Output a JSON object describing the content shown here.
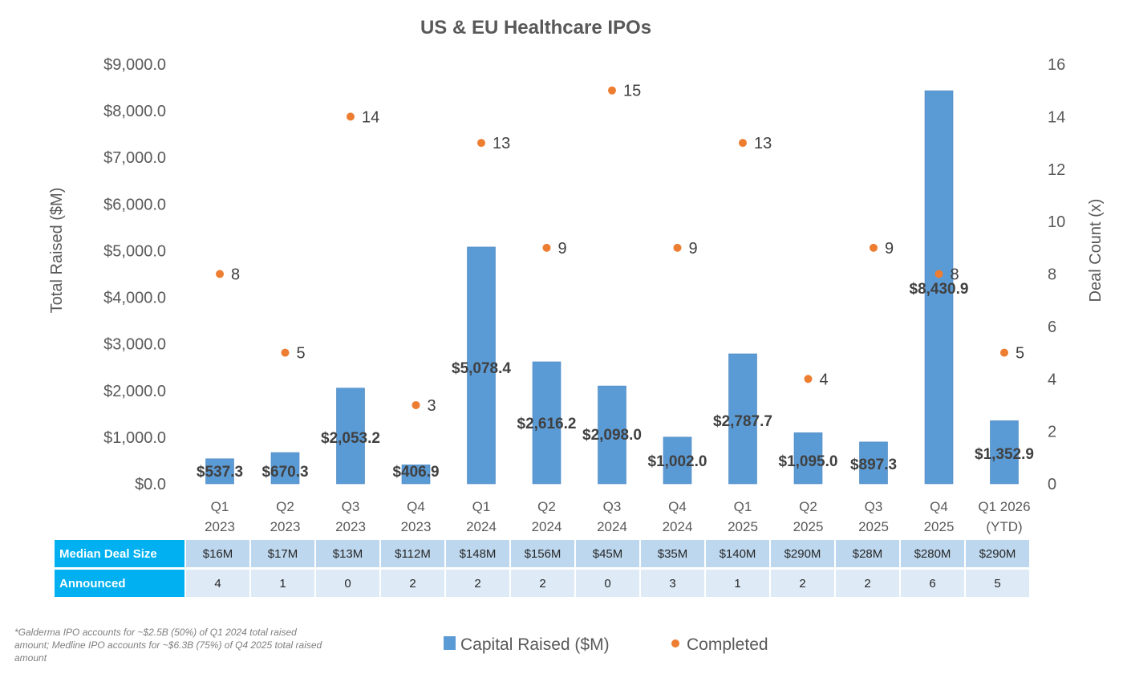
{
  "chart_data": {
    "type": "bar",
    "title": "US & EU Healthcare IPOs",
    "ylabel": "Total Raised ($M)",
    "y2label": "Deal Count (x)",
    "ylim": [
      0,
      9000
    ],
    "y2lim": [
      0,
      16
    ],
    "y_ticks": [
      "$0.0",
      "$1,000.0",
      "$2,000.0",
      "$3,000.0",
      "$4,000.0",
      "$5,000.0",
      "$6,000.0",
      "$7,000.0",
      "$8,000.0",
      "$9,000.0"
    ],
    "y2_ticks": [
      "0",
      "2",
      "4",
      "6",
      "8",
      "10",
      "12",
      "14",
      "16"
    ],
    "categories": [
      [
        "Q1",
        "2023"
      ],
      [
        "Q2",
        "2023"
      ],
      [
        "Q3",
        "2023"
      ],
      [
        "Q4",
        "2023"
      ],
      [
        "Q1",
        "2024"
      ],
      [
        "Q2",
        "2024"
      ],
      [
        "Q3",
        "2024"
      ],
      [
        "Q4",
        "2024"
      ],
      [
        "Q1",
        "2025"
      ],
      [
        "Q2",
        "2025"
      ],
      [
        "Q3",
        "2025"
      ],
      [
        "Q4",
        "2025"
      ],
      [
        "Q1 2026",
        "(YTD)"
      ]
    ],
    "series": [
      {
        "name": "Capital Raised ($M)",
        "type": "bar",
        "axis": "left",
        "color": "#5b9bd5",
        "values": [
          537.3,
          670.3,
          2053.2,
          406.9,
          5078.4,
          2616.2,
          2098.0,
          1002.0,
          2787.7,
          1095.0,
          897.3,
          8430.9,
          1352.9
        ],
        "labels": [
          "$537.3",
          "$670.3",
          "$2,053.2",
          "$406.9",
          "$5,078.4",
          "$2,616.2",
          "$2,098.0",
          "$1,002.0",
          "$2,787.7",
          "$1,095.0",
          "$897.3",
          "$8,430.9",
          "$1,352.9"
        ]
      },
      {
        "name": "Completed",
        "type": "scatter",
        "axis": "right",
        "color": "#ed7d31",
        "values": [
          8,
          5,
          14,
          3,
          13,
          9,
          15,
          9,
          13,
          4,
          9,
          8,
          5
        ]
      }
    ],
    "grid": false,
    "legend": "bottom"
  },
  "table": {
    "rows": [
      {
        "header": "Median Deal Size",
        "values": [
          "$16M",
          "$17M",
          "$13M",
          "$112M",
          "$148M",
          "$156M",
          "$45M",
          "$35M",
          "$140M",
          "$290M",
          "$28M",
          "$280M",
          "$290M"
        ]
      },
      {
        "header": "Announced",
        "values": [
          "4",
          "1",
          "0",
          "2",
          "2",
          "2",
          "0",
          "3",
          "1",
          "2",
          "2",
          "6",
          "5"
        ]
      }
    ]
  },
  "footnote": "*Galderma IPO accounts for ~$2.5B (50%) of Q1 2024 total raised amount; Medline IPO accounts for ~$6.3B (75%) of Q4 2025 total raised amount"
}
